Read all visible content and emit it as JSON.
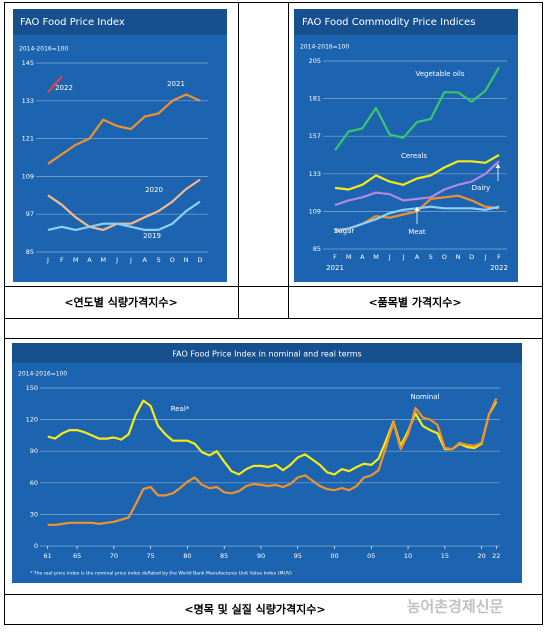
{
  "chart_data": [
    {
      "type": "line",
      "title": "FAO Food Price Index",
      "subtitle": "2014-2016=100",
      "categories": [
        "J",
        "F",
        "M",
        "A",
        "M",
        "J",
        "J",
        "A",
        "S",
        "O",
        "N",
        "D"
      ],
      "ylim": [
        85,
        145
      ],
      "yticks": [
        85,
        97,
        109,
        121,
        133,
        145
      ],
      "grid": true,
      "series": [
        {
          "name": "2022",
          "color": "#e0434a",
          "values": [
            135.7,
            140.7,
            null,
            null,
            null,
            null,
            null,
            null,
            null,
            null,
            null,
            null
          ]
        },
        {
          "name": "2021",
          "color": "#f0922b",
          "values": [
            113,
            116,
            119,
            121,
            127,
            125,
            124,
            128,
            129,
            133,
            135,
            133
          ]
        },
        {
          "name": "2020",
          "color": "#f7b98c",
          "values": [
            103,
            100,
            96,
            93,
            92,
            94,
            94,
            96,
            98,
            101,
            105,
            108
          ]
        },
        {
          "name": "2019",
          "color": "#8fd0f2",
          "values": [
            92,
            93,
            92,
            93,
            94,
            94,
            93,
            92,
            92,
            94,
            98,
            101
          ]
        }
      ]
    },
    {
      "type": "line",
      "title": "FAO Food Commodity Price Indices",
      "subtitle": "2014-2016=100",
      "categories": [
        "F",
        "M",
        "A",
        "M",
        "J",
        "J",
        "A",
        "S",
        "O",
        "N",
        "D",
        "J",
        "F"
      ],
      "x_group_labels": [
        "2021",
        "2022"
      ],
      "ylim": [
        85,
        205
      ],
      "yticks": [
        85,
        109,
        133,
        157,
        181,
        205
      ],
      "grid": true,
      "series": [
        {
          "name": "Vegetable oils",
          "color": "#3cc46a",
          "values": [
            148,
            160,
            162,
            175,
            158,
            156,
            166,
            168,
            185,
            185,
            179,
            186,
            201
          ]
        },
        {
          "name": "Cereals",
          "color": "#f5ea14",
          "values": [
            124,
            123,
            126,
            132,
            128,
            126,
            130,
            132,
            137,
            141,
            141,
            140,
            145
          ]
        },
        {
          "name": "Dairy",
          "color": "#b388e0",
          "values": [
            113,
            116,
            118,
            121,
            120,
            116,
            117,
            118,
            123,
            126,
            128,
            133,
            141
          ]
        },
        {
          "name": "Sugar",
          "color": "#f0922b",
          "values": [
            96,
            98,
            101,
            106,
            105,
            107,
            109,
            117,
            118,
            119,
            116,
            112,
            111
          ]
        },
        {
          "name": "Meat",
          "color": "#8fd0f2",
          "values": [
            97,
            98,
            101,
            104,
            108,
            110,
            111,
            112,
            111,
            111,
            111,
            110,
            112
          ]
        }
      ]
    },
    {
      "type": "line",
      "title": "FAO Food Price Index in nominal and real terms",
      "subtitle": "2014-2016=100",
      "footnote": "* The real price index is the nominal price index deflated by the World Bank Manufactures Unit Value Index (MUV)",
      "x": [
        1961,
        1962,
        1963,
        1964,
        1965,
        1966,
        1967,
        1968,
        1969,
        1970,
        1971,
        1972,
        1973,
        1974,
        1975,
        1976,
        1977,
        1978,
        1979,
        1980,
        1981,
        1982,
        1983,
        1984,
        1985,
        1986,
        1987,
        1988,
        1989,
        1990,
        1991,
        1992,
        1993,
        1994,
        1995,
        1996,
        1997,
        1998,
        1999,
        2000,
        2001,
        2002,
        2003,
        2004,
        2005,
        2006,
        2007,
        2008,
        2009,
        2010,
        2011,
        2012,
        2013,
        2014,
        2015,
        2016,
        2017,
        2018,
        2019,
        2020,
        2021,
        2022
      ],
      "xlim": [
        1960.5,
        2022.5
      ],
      "xticks": [
        {
          "value": 1961,
          "label": "61"
        },
        {
          "value": 1965,
          "label": "65"
        },
        {
          "value": 1970,
          "label": "70"
        },
        {
          "value": 1975,
          "label": "75"
        },
        {
          "value": 1980,
          "label": "80"
        },
        {
          "value": 1985,
          "label": "85"
        },
        {
          "value": 1990,
          "label": "90"
        },
        {
          "value": 1995,
          "label": "95"
        },
        {
          "value": 2000,
          "label": "00"
        },
        {
          "value": 2005,
          "label": "05"
        },
        {
          "value": 2010,
          "label": "10"
        },
        {
          "value": 2015,
          "label": "15"
        },
        {
          "value": 2020,
          "label": "20"
        },
        {
          "value": 2022,
          "label": "22"
        }
      ],
      "ylim": [
        0,
        150
      ],
      "yticks": [
        0,
        30,
        60,
        90,
        120,
        150
      ],
      "grid": true,
      "series": [
        {
          "name": "Real*",
          "color": "#f5ea14",
          "values": [
            104,
            102,
            107,
            110,
            110,
            108,
            105,
            102,
            102,
            103,
            101,
            106,
            125,
            138,
            133,
            114,
            106,
            100,
            100,
            100,
            97,
            89,
            86,
            90,
            80,
            71,
            68,
            73,
            76,
            76,
            75,
            77,
            72,
            77,
            84,
            87,
            82,
            77,
            70,
            68,
            73,
            71,
            75,
            78,
            77,
            83,
            100,
            118,
            95,
            109,
            126,
            114,
            110,
            107,
            92,
            92,
            97,
            94,
            93,
            97,
            125,
            137
          ]
        },
        {
          "name": "Nominal",
          "color": "#f0922b",
          "values": [
            20,
            20,
            21,
            22,
            22,
            22,
            22,
            21,
            22,
            23,
            25,
            27,
            40,
            54,
            56,
            48,
            48,
            50,
            55,
            61,
            65,
            58,
            55,
            56,
            51,
            50,
            52,
            57,
            59,
            58,
            57,
            58,
            56,
            59,
            65,
            67,
            62,
            57,
            54,
            53,
            55,
            53,
            57,
            65,
            67,
            72,
            94,
            117,
            92,
            106,
            131,
            122,
            120,
            115,
            93,
            92,
            98,
            96,
            95,
            98,
            125,
            140
          ]
        }
      ]
    }
  ],
  "captions": [
    "<연도별 식량가격지수>",
    "<품목별 가격지수>",
    "<명목 및 실질 식량가격지수>"
  ],
  "watermark": "농어촌경제신문"
}
